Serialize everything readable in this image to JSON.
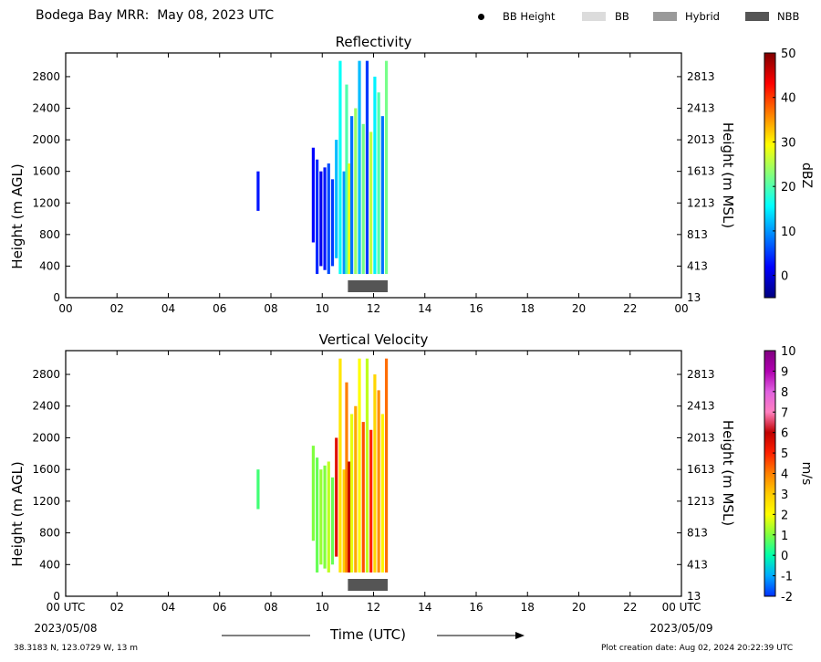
{
  "header": {
    "title": "Bodega Bay MRR:  May 08, 2023 UTC",
    "legend": [
      {
        "label": "BB Height",
        "icon": "dot-marker",
        "color": "#000000"
      },
      {
        "label": "BB",
        "icon": "swatch",
        "color": "#dcdcdc"
      },
      {
        "label": "Hybrid",
        "icon": "swatch",
        "color": "#9a9a9a"
      },
      {
        "label": "NBB",
        "icon": "swatch",
        "color": "#555555"
      }
    ]
  },
  "footer": {
    "location": "38.3183 N, 123.0729 W, 13 m",
    "creation": "Plot creation date: Aug 02, 2024 20:22:39 UTC",
    "x_title": "Time (UTC)",
    "start_date": "2023/05/08",
    "end_date": "2023/05/09"
  },
  "chart_data": [
    {
      "type": "heatmap",
      "title": "Reflectivity",
      "ylabel": "Height (m AGL)",
      "ylabel_right": "Height (m MSL)",
      "xlim": [
        0,
        24
      ],
      "ylim": [
        0,
        3100
      ],
      "x_ticks": [
        "00",
        "02",
        "04",
        "06",
        "08",
        "10",
        "12",
        "14",
        "16",
        "18",
        "20",
        "22",
        "00"
      ],
      "y_ticks": [
        "0",
        "400",
        "800",
        "1200",
        "1600",
        "2000",
        "2400",
        "2800"
      ],
      "y_ticks_right": [
        "13",
        "413",
        "813",
        "1213",
        "1613",
        "2013",
        "2413",
        "2813"
      ],
      "colorbar": {
        "label": "dBZ",
        "range": [
          -5,
          50
        ],
        "ticks": [
          "0",
          "10",
          "20",
          "30",
          "40",
          "50"
        ],
        "colors": [
          "#00007f",
          "#0000ff",
          "#0080ff",
          "#00ffff",
          "#80ff80",
          "#ffff00",
          "#ff8000",
          "#ff0000",
          "#7f0000"
        ]
      },
      "bright_band": {
        "type": "NBB",
        "start": 11.0,
        "end": 12.55,
        "color": "#555555"
      },
      "echo_segments": [
        {
          "t": 7.5,
          "h0": 1100,
          "h1": 1600,
          "v": 3
        },
        {
          "t": 9.65,
          "h0": 700,
          "h1": 1900,
          "v": 2
        },
        {
          "t": 9.8,
          "h0": 300,
          "h1": 1750,
          "v": 4
        },
        {
          "t": 9.95,
          "h0": 400,
          "h1": 1600,
          "v": 1
        },
        {
          "t": 10.1,
          "h0": 350,
          "h1": 1650,
          "v": 3
        },
        {
          "t": 10.25,
          "h0": 300,
          "h1": 1700,
          "v": 6
        },
        {
          "t": 10.4,
          "h0": 400,
          "h1": 1500,
          "v": 5
        },
        {
          "t": 10.55,
          "h0": 500,
          "h1": 2000,
          "v": 12
        },
        {
          "t": 10.7,
          "h0": 300,
          "h1": 3000,
          "v": 16
        },
        {
          "t": 10.85,
          "h0": 300,
          "h1": 1600,
          "v": 10
        },
        {
          "t": 10.95,
          "h0": 300,
          "h1": 2700,
          "v": 20
        },
        {
          "t": 11.05,
          "h0": 300,
          "h1": 1700,
          "v": 28
        },
        {
          "t": 11.15,
          "h0": 300,
          "h1": 2300,
          "v": 8
        },
        {
          "t": 11.3,
          "h0": 300,
          "h1": 2400,
          "v": 24
        },
        {
          "t": 11.45,
          "h0": 300,
          "h1": 3000,
          "v": 12
        },
        {
          "t": 11.6,
          "h0": 300,
          "h1": 2200,
          "v": 22
        },
        {
          "t": 11.75,
          "h0": 300,
          "h1": 3000,
          "v": 5
        },
        {
          "t": 11.9,
          "h0": 300,
          "h1": 2100,
          "v": 26
        },
        {
          "t": 12.05,
          "h0": 300,
          "h1": 2800,
          "v": 15
        },
        {
          "t": 12.2,
          "h0": 300,
          "h1": 2600,
          "v": 20
        },
        {
          "t": 12.35,
          "h0": 300,
          "h1": 2300,
          "v": 8
        },
        {
          "t": 12.5,
          "h0": 300,
          "h1": 3000,
          "v": 22
        }
      ]
    },
    {
      "type": "heatmap",
      "title": "Vertical Velocity",
      "ylabel": "Height (m AGL)",
      "ylabel_right": "Height (m MSL)",
      "xlim": [
        0,
        24
      ],
      "ylim": [
        0,
        3100
      ],
      "x_ticks": [
        "00 UTC",
        "02",
        "04",
        "06",
        "08",
        "10",
        "12",
        "14",
        "16",
        "18",
        "20",
        "22",
        "00 UTC"
      ],
      "y_ticks": [
        "0",
        "400",
        "800",
        "1200",
        "1600",
        "2000",
        "2400",
        "2800"
      ],
      "y_ticks_right": [
        "13",
        "413",
        "813",
        "1213",
        "1613",
        "2013",
        "2413",
        "2813"
      ],
      "colorbar": {
        "label": "m/s",
        "range": [
          -2,
          10
        ],
        "ticks": [
          "-2",
          "-1",
          "0",
          "1",
          "2",
          "3",
          "4",
          "5",
          "6",
          "7",
          "8",
          "9",
          "10"
        ],
        "colors": [
          "#0030ff",
          "#00aaff",
          "#00ffaa",
          "#7fff40",
          "#ffff00",
          "#ffcc00",
          "#ff8000",
          "#ff2000",
          "#c00000",
          "#ff80c0",
          "#e060e0",
          "#b000b0",
          "#800080"
        ]
      },
      "bright_band": {
        "type": "NBB",
        "start": 11.0,
        "end": 12.55,
        "color": "#555555"
      },
      "echo_segments": [
        {
          "t": 7.5,
          "h0": 1100,
          "h1": 1600,
          "v": 0.5
        },
        {
          "t": 9.65,
          "h0": 700,
          "h1": 1900,
          "v": 1.0
        },
        {
          "t": 9.8,
          "h0": 300,
          "h1": 1750,
          "v": 0.8
        },
        {
          "t": 9.95,
          "h0": 400,
          "h1": 1600,
          "v": 1.2
        },
        {
          "t": 10.1,
          "h0": 350,
          "h1": 1650,
          "v": 1.0
        },
        {
          "t": 10.25,
          "h0": 300,
          "h1": 1700,
          "v": 1.5
        },
        {
          "t": 10.4,
          "h0": 400,
          "h1": 1500,
          "v": 0.8
        },
        {
          "t": 10.55,
          "h0": 500,
          "h1": 2000,
          "v": 5.5
        },
        {
          "t": 10.7,
          "h0": 300,
          "h1": 3000,
          "v": 2.5
        },
        {
          "t": 10.85,
          "h0": 300,
          "h1": 1600,
          "v": 3.0
        },
        {
          "t": 10.95,
          "h0": 300,
          "h1": 2700,
          "v": 4.0
        },
        {
          "t": 11.05,
          "h0": 300,
          "h1": 1700,
          "v": 6.0
        },
        {
          "t": 11.15,
          "h0": 300,
          "h1": 2300,
          "v": 1.8
        },
        {
          "t": 11.3,
          "h0": 300,
          "h1": 2400,
          "v": 3.5
        },
        {
          "t": 11.45,
          "h0": 300,
          "h1": 3000,
          "v": 2.0
        },
        {
          "t": 11.6,
          "h0": 300,
          "h1": 2200,
          "v": 4.5
        },
        {
          "t": 11.75,
          "h0": 300,
          "h1": 3000,
          "v": 1.5
        },
        {
          "t": 11.9,
          "h0": 300,
          "h1": 2100,
          "v": 5.0
        },
        {
          "t": 12.05,
          "h0": 300,
          "h1": 2800,
          "v": 2.8
        },
        {
          "t": 12.2,
          "h0": 300,
          "h1": 2600,
          "v": 3.8
        },
        {
          "t": 12.35,
          "h0": 300,
          "h1": 2300,
          "v": 2.2
        },
        {
          "t": 12.5,
          "h0": 300,
          "h1": 3000,
          "v": 4.2
        }
      ]
    }
  ]
}
